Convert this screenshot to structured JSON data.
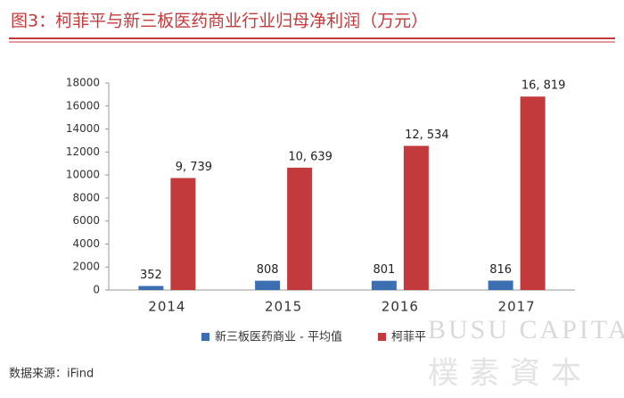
{
  "chart_data": {
    "type": "bar",
    "title": "图3：柯菲平与新三板医药商业行业归母净利润（万元）",
    "source": "数据来源：iFind",
    "watermark": [
      "BUSU CAPITAL",
      "樸素資本"
    ],
    "categories": [
      "2014",
      "2015",
      "2016",
      "2017"
    ],
    "series": [
      {
        "name": "新三板医药商业 - 平均值",
        "color": "#3b6fb2",
        "values": [
          352,
          808,
          801,
          816
        ]
      },
      {
        "name": "柯菲平",
        "color": "#c23a3c",
        "values": [
          9739,
          10639,
          12534,
          16819
        ],
        "value_labels": [
          "9, 739",
          "10, 639",
          "12, 534",
          "16, 819"
        ]
      }
    ],
    "ylim": [
      0,
      18000
    ],
    "yticks": [
      0,
      2000,
      4000,
      6000,
      8000,
      10000,
      12000,
      14000,
      16000,
      18000
    ],
    "grid": false,
    "legend": "bottom"
  }
}
